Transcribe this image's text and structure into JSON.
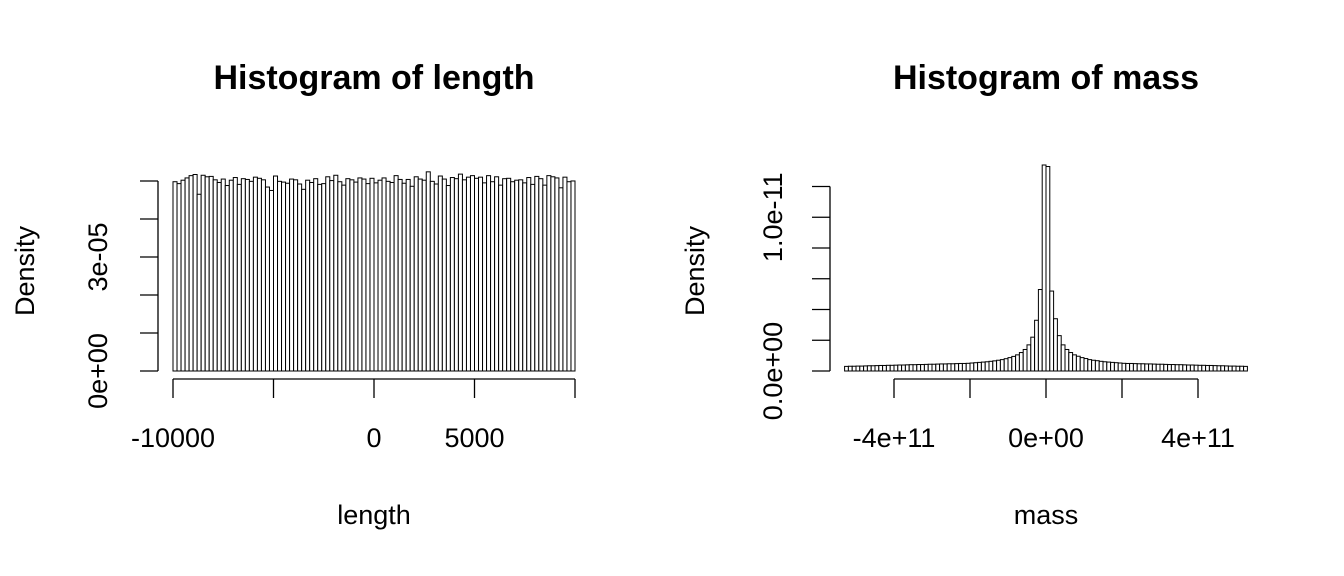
{
  "chart_data": [
    {
      "type": "histogram",
      "title": "Histogram of length",
      "x_label": "length",
      "y_label": "Density",
      "bins": [
        -10000,
        -9800,
        -9600,
        -9400,
        -9200,
        -9000,
        -8800,
        -8600,
        -8400,
        -8200,
        -8000,
        -7800,
        -7600,
        -7400,
        -7200,
        -7000,
        -6800,
        -6600,
        -6400,
        -6200,
        -6000,
        -5800,
        -5600,
        -5400,
        -5200,
        -5000,
        -4800,
        -4600,
        -4400,
        -4200,
        -4000,
        -3800,
        -3600,
        -3400,
        -3200,
        -3000,
        -2800,
        -2600,
        -2400,
        -2200,
        -2000,
        -1800,
        -1600,
        -1400,
        -1200,
        -1000,
        -800,
        -600,
        -400,
        -200,
        0,
        200,
        400,
        600,
        800,
        1000,
        1200,
        1400,
        1600,
        1800,
        2000,
        2200,
        2400,
        2600,
        2800,
        3000,
        3200,
        3400,
        3600,
        3800,
        4000,
        4200,
        4400,
        4600,
        4800,
        5000,
        5200,
        5400,
        5600,
        5800,
        6000,
        6200,
        6400,
        6600,
        6800,
        7000,
        7200,
        7400,
        7600,
        7800,
        8000,
        8200,
        8400,
        8600,
        8800,
        9000,
        9200,
        9400,
        9600,
        9800,
        10000
      ],
      "values": [
        4.98e-05,
        4.93e-05,
        5.02e-05,
        5.08e-05,
        5.14e-05,
        5.17e-05,
        4.65e-05,
        5.15e-05,
        5.11e-05,
        5.12e-05,
        5.03e-05,
        4.96e-05,
        5.05e-05,
        4.88e-05,
        5.02e-05,
        5.09e-05,
        4.91e-05,
        5.06e-05,
        5.04e-05,
        4.99e-05,
        5.1e-05,
        5.07e-05,
        5.03e-05,
        4.84e-05,
        4.75e-05,
        5.13e-05,
        4.99e-05,
        4.97e-05,
        4.94e-05,
        5.05e-05,
        5.03e-05,
        4.92e-05,
        4.78e-05,
        5.02e-05,
        4.96e-05,
        5.06e-05,
        4.91e-05,
        4.93e-05,
        5.11e-05,
        5.01e-05,
        5.15e-05,
        4.98e-05,
        4.89e-05,
        5.06e-05,
        5.03e-05,
        4.97e-05,
        5.08e-05,
        5.05e-05,
        4.93e-05,
        5.07e-05,
        4.95e-05,
        5.02e-05,
        5.08e-05,
        4.99e-05,
        4.96e-05,
        5.14e-05,
        5.04e-05,
        4.94e-05,
        5.04e-05,
        4.86e-05,
        5.11e-05,
        5.05e-05,
        5.02e-05,
        5.24e-05,
        4.99e-05,
        4.92e-05,
        5.13e-05,
        5.05e-05,
        4.88e-05,
        5.09e-05,
        5.06e-05,
        5.18e-05,
        5.03e-05,
        5.1e-05,
        5.14e-05,
        5.07e-05,
        5.1e-05,
        4.95e-05,
        5.14e-05,
        4.98e-05,
        5.11e-05,
        4.89e-05,
        5.06e-05,
        5.07e-05,
        4.98e-05,
        5.02e-05,
        5.03e-05,
        4.95e-05,
        5.09e-05,
        4.91e-05,
        5.12e-05,
        5.06e-05,
        4.89e-05,
        5.14e-05,
        5.11e-05,
        5.08e-05,
        4.82e-05,
        5.1e-05,
        4.98e-05,
        5e-05
      ],
      "xlim": [
        -10000,
        10000
      ],
      "ylim": [
        0,
        5.42e-05
      ],
      "xticks": [
        {
          "value": -10000,
          "label": "-10000"
        },
        {
          "value": -5000,
          "label": null
        },
        0,
        5000,
        {
          "value": 10000,
          "label": null
        }
      ],
      "yticks": [
        {
          "value": 0,
          "label": "0e+00"
        },
        {
          "value": 1e-05,
          "label": null
        },
        {
          "value": 2e-05,
          "label": null
        },
        {
          "value": 3e-05,
          "label": "3e-05"
        },
        {
          "value": 4e-05,
          "label": null
        },
        {
          "value": 5e-05,
          "label": null
        }
      ]
    },
    {
      "type": "histogram",
      "title": "Histogram of mass",
      "x_label": "mass",
      "y_label": "Density",
      "bins": [
        -530000000000.0,
        -520000000000.0,
        -510000000000.0,
        -500000000000.0,
        -490000000000.0,
        -480000000000.0,
        -470000000000.0,
        -460000000000.0,
        -450000000000.0,
        -440000000000.0,
        -430000000000.0,
        -420000000000.0,
        -410000000000.0,
        -400000000000.0,
        -390000000000.0,
        -380000000000.0,
        -370000000000.0,
        -360000000000.0,
        -350000000000.0,
        -340000000000.0,
        -330000000000.0,
        -320000000000.0,
        -310000000000.0,
        -300000000000.0,
        -290000000000.0,
        -280000000000.0,
        -270000000000.0,
        -260000000000.0,
        -250000000000.0,
        -240000000000.0,
        -230000000000.0,
        -220000000000.0,
        -210000000000.0,
        -200000000000.0,
        -190000000000.0,
        -180000000000.0,
        -170000000000.0,
        -160000000000.0,
        -150000000000.0,
        -140000000000.0,
        -130000000000.0,
        -120000000000.0,
        -110000000000.0,
        -100000000000.0,
        -90000000000.0,
        -80000000000.0,
        -70000000000.0,
        -60000000000.0,
        -50000000000.0,
        -40000000000.0,
        -30000000000.0,
        -20000000000.0,
        -10000000000.0,
        0,
        10000000000.0,
        20000000000.0,
        30000000000.0,
        40000000000.0,
        50000000000.0,
        60000000000.0,
        70000000000.0,
        80000000000.0,
        90000000000.0,
        100000000000.0,
        110000000000.0,
        120000000000.0,
        130000000000.0,
        140000000000.0,
        150000000000.0,
        160000000000.0,
        170000000000.0,
        180000000000.0,
        190000000000.0,
        200000000000.0,
        210000000000.0,
        220000000000.0,
        230000000000.0,
        240000000000.0,
        250000000000.0,
        260000000000.0,
        270000000000.0,
        280000000000.0,
        290000000000.0,
        300000000000.0,
        310000000000.0,
        320000000000.0,
        330000000000.0,
        340000000000.0,
        350000000000.0,
        360000000000.0,
        370000000000.0,
        380000000000.0,
        390000000000.0,
        400000000000.0,
        410000000000.0,
        420000000000.0,
        430000000000.0,
        440000000000.0,
        450000000000.0,
        460000000000.0,
        470000000000.0,
        480000000000.0,
        490000000000.0,
        500000000000.0,
        510000000000.0,
        520000000000.0,
        530000000000.0
      ],
      "values": [
        3e-13,
        3.1e-13,
        3.1e-13,
        3.2e-13,
        3.2e-13,
        3.3e-13,
        3.4e-13,
        3.4e-13,
        3.5e-13,
        3.6e-13,
        3.6e-13,
        3.7e-13,
        3.7e-13,
        3.8e-13,
        3.9e-13,
        3.9e-13,
        4e-13,
        4.1e-13,
        4.1e-13,
        4.2e-13,
        4.2e-13,
        4.3e-13,
        4.4e-13,
        4.4e-13,
        4.5e-13,
        4.6e-13,
        4.6e-13,
        4.7e-13,
        4.7e-13,
        4.8e-13,
        4.9e-13,
        4.9e-13,
        5e-13,
        5.2e-13,
        5.4e-13,
        5.6e-13,
        5.8e-13,
        6e-13,
        6.3e-13,
        6.6e-13,
        7e-13,
        7.4e-13,
        8e-13,
        8.7e-13,
        9.5e-13,
        1.05e-12,
        1.2e-12,
        1.4e-12,
        1.7e-12,
        2.2e-12,
        3.3e-12,
        5.3e-12,
        1.34e-11,
        1.33e-11,
        5.2e-12,
        3.4e-12,
        2.3e-12,
        1.7e-12,
        1.4e-12,
        1.2e-12,
        1.05e-12,
        9.6e-13,
        8.7e-13,
        8.1e-13,
        7.4e-13,
        7e-13,
        6.7e-13,
        6.3e-13,
        6e-13,
        5.8e-13,
        5.6e-13,
        5.4e-13,
        5.2e-13,
        5e-13,
        4.9e-13,
        4.9e-13,
        4.8e-13,
        4.7e-13,
        4.7e-13,
        4.6e-13,
        4.6e-13,
        4.5e-13,
        4.4e-13,
        4.4e-13,
        4.3e-13,
        4.2e-13,
        4.2e-13,
        4.1e-13,
        4.1e-13,
        4e-13,
        3.9e-13,
        3.9e-13,
        3.8e-13,
        3.7e-13,
        3.7e-13,
        3.6e-13,
        3.6e-13,
        3.5e-13,
        3.4e-13,
        3.4e-13,
        3.3e-13,
        3.2e-13,
        3.2e-13,
        3.1e-13,
        3.1e-13,
        3e-13
      ],
      "xlim": [
        -530000000000.0,
        530000000000.0
      ],
      "ylim": [
        0,
        1.34e-11
      ],
      "xticks": [
        {
          "value": -400000000000.0,
          "label": "-4e+11"
        },
        {
          "value": -200000000000.0,
          "label": null
        },
        {
          "value": 0,
          "label": "0e+00"
        },
        {
          "value": 200000000000.0,
          "label": null
        },
        {
          "value": 400000000000.0,
          "label": "4e+11"
        }
      ],
      "yticks": [
        {
          "value": 0,
          "label": "0.0e+00"
        },
        {
          "value": 2e-12,
          "label": null
        },
        {
          "value": 4e-12,
          "label": null
        },
        {
          "value": 6e-12,
          "label": null
        },
        {
          "value": 8e-12,
          "label": null
        },
        {
          "value": 1e-11,
          "label": "1.0e-11"
        },
        {
          "value": 1.2e-11,
          "label": null
        }
      ]
    }
  ]
}
